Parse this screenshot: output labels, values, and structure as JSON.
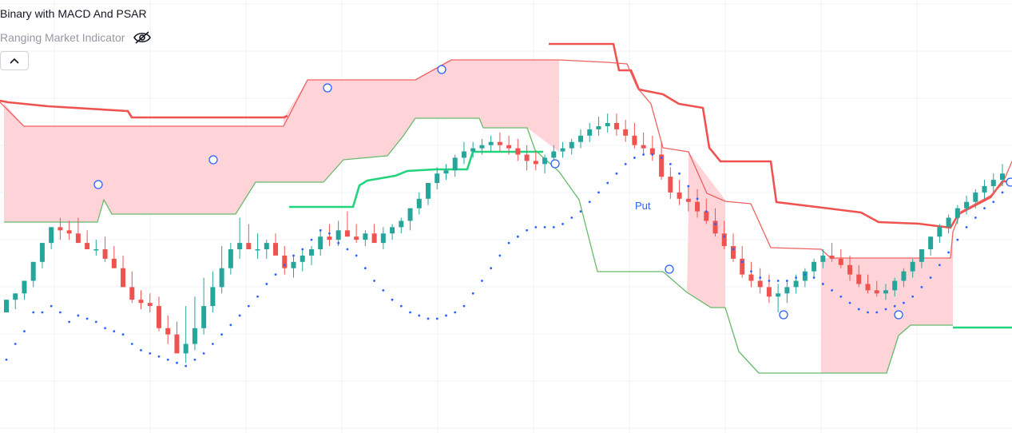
{
  "legend": {
    "study_title": "Binary with MACD And PSAR",
    "indicator_name": "Ranging Market Indicator",
    "visibility_icon": "eye-off-icon",
    "collapse_icon": "chevron-up-icon"
  },
  "colors": {
    "up_candle": "#26a69a",
    "down_candle": "#ef5350",
    "range_fill": "#ffcdd2",
    "upper_thin": "#f06060",
    "upper_thick": "#ef5350",
    "lower_thin": "#66bb6a",
    "green_level": "#22d47e",
    "psar": "#2962ff",
    "grid": "#f0f3fa"
  },
  "chart_data": {
    "type": "candlestick",
    "signal_label": "Put",
    "candles": [
      [
        0.2,
        0.24,
        0.22,
        0.05
      ],
      [
        0.24,
        0.26,
        0.21,
        0.1
      ],
      [
        0.26,
        0.3,
        0.24,
        0.14
      ],
      [
        0.3,
        0.36,
        0.28,
        0.2
      ],
      [
        0.36,
        0.42,
        0.34,
        0.2
      ],
      [
        0.42,
        0.47,
        0.4,
        0.22
      ],
      [
        0.47,
        0.5,
        0.43,
        0.2
      ],
      [
        0.46,
        0.49,
        0.43,
        0.17
      ],
      [
        0.45,
        0.5,
        0.42,
        0.19
      ],
      [
        0.42,
        0.46,
        0.4,
        0.18
      ],
      [
        0.4,
        0.43,
        0.38,
        0.17
      ],
      [
        0.4,
        0.44,
        0.36,
        0.15
      ],
      [
        0.37,
        0.41,
        0.34,
        0.14
      ],
      [
        0.34,
        0.38,
        0.3,
        0.13
      ],
      [
        0.28,
        0.33,
        0.23,
        0.1
      ],
      [
        0.24,
        0.27,
        0.21,
        0.08
      ],
      [
        0.23,
        0.26,
        0.2,
        0.07
      ],
      [
        0.22,
        0.25,
        0.14,
        0.06
      ],
      [
        0.15,
        0.19,
        0.1,
        0.05
      ],
      [
        0.13,
        0.17,
        0.07,
        0.04
      ],
      [
        0.07,
        0.22,
        0.04,
        0.03
      ],
      [
        0.1,
        0.25,
        0.08,
        0.05
      ],
      [
        0.15,
        0.31,
        0.13,
        0.07
      ],
      [
        0.22,
        0.33,
        0.2,
        0.1
      ],
      [
        0.28,
        0.41,
        0.26,
        0.13
      ],
      [
        0.34,
        0.42,
        0.32,
        0.16
      ],
      [
        0.4,
        0.5,
        0.37,
        0.19
      ],
      [
        0.42,
        0.48,
        0.4,
        0.22
      ],
      [
        0.4,
        0.45,
        0.37,
        0.25
      ],
      [
        0.4,
        0.43,
        0.37,
        0.29
      ],
      [
        0.42,
        0.45,
        0.39,
        0.32
      ],
      [
        0.38,
        0.41,
        0.32,
        0.35
      ],
      [
        0.34,
        0.38,
        0.31,
        0.38
      ],
      [
        0.36,
        0.4,
        0.33,
        0.4
      ],
      [
        0.38,
        0.41,
        0.35,
        0.43
      ],
      [
        0.4,
        0.46,
        0.38,
        0.46
      ],
      [
        0.44,
        0.48,
        0.41,
        0.45
      ],
      [
        0.43,
        0.49,
        0.41,
        0.42
      ],
      [
        0.46,
        0.52,
        0.44,
        0.4
      ],
      [
        0.44,
        0.48,
        0.42,
        0.38
      ],
      [
        0.43,
        0.46,
        0.41,
        0.34
      ],
      [
        0.45,
        0.48,
        0.43,
        0.3
      ],
      [
        0.42,
        0.47,
        0.4,
        0.27
      ],
      [
        0.45,
        0.48,
        0.43,
        0.24
      ],
      [
        0.47,
        0.5,
        0.45,
        0.22
      ],
      [
        0.49,
        0.52,
        0.46,
        0.2
      ],
      [
        0.53,
        0.58,
        0.51,
        0.19
      ],
      [
        0.56,
        0.61,
        0.54,
        0.18
      ],
      [
        0.61,
        0.66,
        0.59,
        0.18
      ],
      [
        0.64,
        0.67,
        0.62,
        0.19
      ],
      [
        0.65,
        0.7,
        0.63,
        0.2
      ],
      [
        0.69,
        0.74,
        0.67,
        0.22
      ],
      [
        0.71,
        0.74,
        0.69,
        0.26
      ],
      [
        0.72,
        0.75,
        0.7,
        0.3
      ],
      [
        0.73,
        0.76,
        0.71,
        0.34
      ],
      [
        0.74,
        0.77,
        0.71,
        0.38
      ],
      [
        0.73,
        0.76,
        0.7,
        0.42
      ],
      [
        0.72,
        0.75,
        0.68,
        0.44
      ],
      [
        0.7,
        0.73,
        0.65,
        0.46
      ],
      [
        0.68,
        0.71,
        0.65,
        0.47
      ],
      [
        0.67,
        0.7,
        0.64,
        0.47
      ],
      [
        0.69,
        0.73,
        0.67,
        0.47
      ],
      [
        0.71,
        0.74,
        0.69,
        0.48
      ],
      [
        0.72,
        0.75,
        0.7,
        0.5
      ],
      [
        0.74,
        0.78,
        0.72,
        0.52
      ],
      [
        0.76,
        0.8,
        0.74,
        0.55
      ],
      [
        0.78,
        0.82,
        0.76,
        0.58
      ],
      [
        0.79,
        0.83,
        0.77,
        0.61
      ],
      [
        0.8,
        0.83,
        0.76,
        0.64
      ],
      [
        0.78,
        0.81,
        0.74,
        0.67
      ],
      [
        0.76,
        0.8,
        0.72,
        0.69
      ],
      [
        0.73,
        0.77,
        0.7,
        0.7
      ],
      [
        0.72,
        0.76,
        0.68,
        0.7
      ],
      [
        0.7,
        0.74,
        0.62,
        0.69
      ],
      [
        0.63,
        0.66,
        0.56,
        0.67
      ],
      [
        0.58,
        0.62,
        0.54,
        0.64
      ],
      [
        0.56,
        0.6,
        0.52,
        0.6
      ],
      [
        0.55,
        0.59,
        0.5,
        0.56
      ],
      [
        0.52,
        0.56,
        0.48,
        0.52
      ],
      [
        0.49,
        0.53,
        0.44,
        0.48
      ],
      [
        0.45,
        0.49,
        0.4,
        0.44
      ],
      [
        0.41,
        0.45,
        0.36,
        0.4
      ],
      [
        0.37,
        0.41,
        0.31,
        0.36
      ],
      [
        0.32,
        0.36,
        0.28,
        0.33
      ],
      [
        0.3,
        0.34,
        0.26,
        0.31
      ],
      [
        0.28,
        0.32,
        0.23,
        0.3
      ],
      [
        0.25,
        0.29,
        0.2,
        0.3
      ],
      [
        0.26,
        0.3,
        0.23,
        0.3
      ],
      [
        0.28,
        0.32,
        0.26,
        0.31
      ],
      [
        0.3,
        0.34,
        0.28,
        0.32
      ],
      [
        0.33,
        0.37,
        0.31,
        0.31
      ],
      [
        0.36,
        0.4,
        0.34,
        0.29
      ],
      [
        0.38,
        0.42,
        0.36,
        0.27
      ],
      [
        0.37,
        0.4,
        0.34,
        0.25
      ],
      [
        0.35,
        0.38,
        0.3,
        0.23
      ],
      [
        0.32,
        0.35,
        0.28,
        0.21
      ],
      [
        0.29,
        0.32,
        0.26,
        0.2
      ],
      [
        0.27,
        0.3,
        0.25,
        0.2
      ],
      [
        0.26,
        0.29,
        0.24,
        0.21
      ],
      [
        0.27,
        0.31,
        0.25,
        0.22
      ],
      [
        0.3,
        0.34,
        0.28,
        0.23
      ],
      [
        0.33,
        0.37,
        0.31,
        0.25
      ],
      [
        0.36,
        0.4,
        0.34,
        0.28
      ],
      [
        0.4,
        0.44,
        0.38,
        0.31
      ],
      [
        0.44,
        0.48,
        0.42,
        0.35
      ],
      [
        0.47,
        0.51,
        0.45,
        0.39
      ],
      [
        0.5,
        0.54,
        0.48,
        0.43
      ],
      [
        0.53,
        0.57,
        0.51,
        0.47
      ],
      [
        0.55,
        0.59,
        0.53,
        0.5
      ],
      [
        0.58,
        0.62,
        0.56,
        0.53
      ],
      [
        0.6,
        0.64,
        0.58,
        0.55
      ],
      [
        0.62,
        0.67,
        0.6,
        0.58
      ]
    ]
  }
}
